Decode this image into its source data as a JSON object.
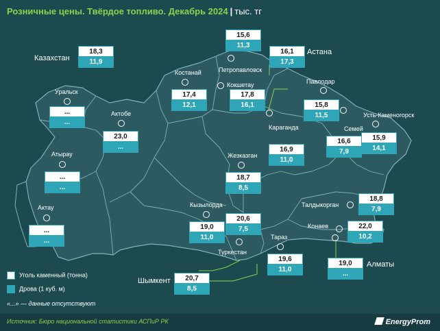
{
  "title": {
    "main": "Розничные цены. Твёрдое топливо. Декабрь 2024",
    "separator": "|",
    "unit": "тыс. тг"
  },
  "country": {
    "name": "Казахстан",
    "coal": "18,3",
    "wood": "11,9"
  },
  "regions": [
    {
      "id": "petropavlovsk",
      "name": "Петропавловск",
      "coal": "15,6",
      "wood": "11,3"
    },
    {
      "id": "astana",
      "name": "Астана",
      "coal": "16,1",
      "wood": "17,3"
    },
    {
      "id": "kostanay",
      "name": "Костанай",
      "coal": "17,4",
      "wood": "12,1"
    },
    {
      "id": "kokshetau",
      "name": "Кокшетау",
      "coal": "17,8",
      "wood": "16,1"
    },
    {
      "id": "pavlodar",
      "name": "Павлодар",
      "coal": "15,8",
      "wood": "11,5"
    },
    {
      "id": "uralsk",
      "name": "Уральск",
      "coal": "...",
      "wood": "..."
    },
    {
      "id": "aktobe",
      "name": "Актобе",
      "coal": "23,0",
      "wood": "..."
    },
    {
      "id": "karaganda",
      "name": "Караганда",
      "coal": "16,9",
      "wood": "11,0"
    },
    {
      "id": "semey",
      "name": "Семей",
      "coal": "16,6",
      "wood": "7,9"
    },
    {
      "id": "ust-kamenogorsk",
      "name": "Усть-Каменогорск",
      "coal": "15,9",
      "wood": "14,1"
    },
    {
      "id": "atyrau",
      "name": "Атырау",
      "coal": "...",
      "wood": "..."
    },
    {
      "id": "zhezkazgan",
      "name": "Жезказган",
      "coal": "18,7",
      "wood": "8,5"
    },
    {
      "id": "aktau",
      "name": "Актау",
      "coal": "...",
      "wood": "..."
    },
    {
      "id": "kyzylorda",
      "name": "Кызылорда",
      "coal": "19,0",
      "wood": "11,0"
    },
    {
      "id": "turkestan",
      "name": "Туркестан",
      "coal": "20,6",
      "wood": "7,5"
    },
    {
      "id": "taldykorgan",
      "name": "Талдыкорган",
      "coal": "18,8",
      "wood": "7,9"
    },
    {
      "id": "konaev",
      "name": "Конаев",
      "coal": "22,0",
      "wood": "10,2"
    },
    {
      "id": "taraz",
      "name": "Тараз",
      "coal": "19,6",
      "wood": "11,0"
    },
    {
      "id": "almaty",
      "name": "Алматы",
      "coal": "19,0",
      "wood": "..."
    },
    {
      "id": "shymkent",
      "name": "Шымкент",
      "coal": "20,7",
      "wood": "8,5"
    }
  ],
  "legend": {
    "coal": "Уголь каменный (тонна)",
    "wood": "Дрова (1 куб. м)"
  },
  "note": "«...» — данные отсутствуют",
  "source": "Источник: Бюро национальной статистики АСПиР РК",
  "brand": "EnergyProm",
  "colors": {
    "background": "#1c4a4f",
    "map_fill": "#2c5a60",
    "border": "#7fb2b6",
    "accent_green": "#8fd14f",
    "teal": "#2fa6b8"
  }
}
